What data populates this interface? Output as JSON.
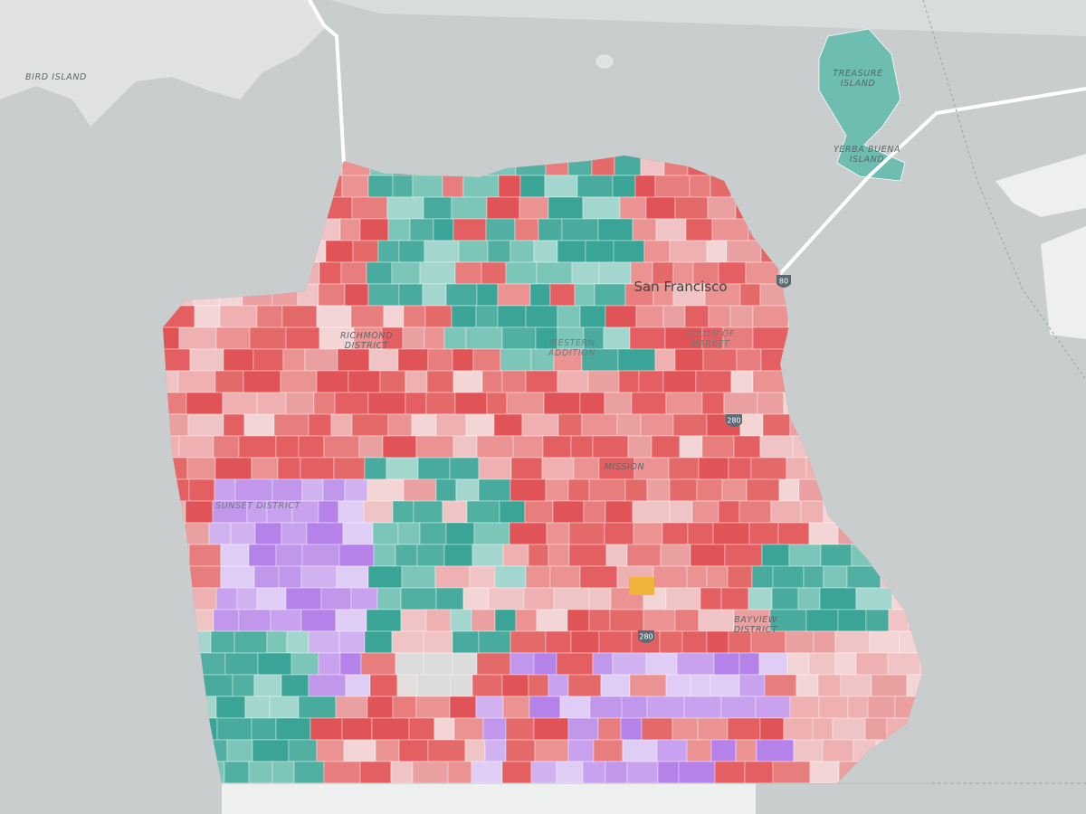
{
  "places": [
    {
      "lines": [
        "BIRD ISLAND"
      ]
    },
    {
      "lines": [
        "TREASURE",
        "ISLAND"
      ]
    },
    {
      "lines": [
        "YERBA BUENA",
        "ISLAND"
      ]
    },
    {
      "lines": [
        "RICHMOND",
        "DISTRICT"
      ]
    },
    {
      "lines": [
        "WESTERN",
        "ADDITION"
      ]
    },
    {
      "lines": [
        "SOUTH OF",
        "MARKET"
      ]
    },
    {
      "lines": [
        "MISSION"
      ]
    },
    {
      "lines": [
        "SUNSET DISTRICT"
      ]
    },
    {
      "lines": [
        "BAYVIEW",
        "DISTRICT"
      ]
    }
  ],
  "city": "San Francisco",
  "highways": [
    "80",
    "280"
  ]
}
